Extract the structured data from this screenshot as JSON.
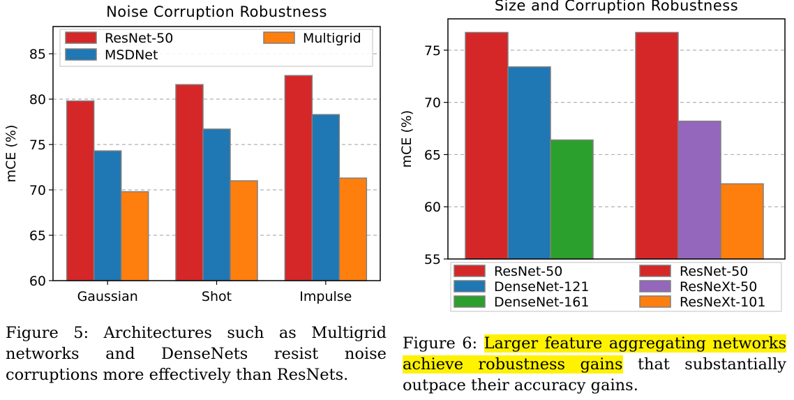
{
  "chart_data": [
    {
      "type": "bar",
      "title": "Noise Corruption Robustness",
      "ylabel": "mCE (%)",
      "xlabel": "",
      "categories": [
        "Gaussian",
        "Shot",
        "Impulse"
      ],
      "ylim": [
        60,
        88
      ],
      "yticks": [
        60,
        65,
        70,
        75,
        80,
        85
      ],
      "grid": "y dashed",
      "legend": "top",
      "series": [
        {
          "name": "ResNet-50",
          "color": "#d62728",
          "values": [
            79.8,
            81.6,
            82.6
          ]
        },
        {
          "name": "MSDNet",
          "color": "#1f77b4",
          "values": [
            74.3,
            76.7,
            78.3
          ]
        },
        {
          "name": "Multigrid",
          "color": "#ff7f0e",
          "values": [
            69.8,
            71.0,
            71.3
          ]
        }
      ]
    },
    {
      "type": "bar",
      "title": "Size and Corruption Robustness",
      "ylabel": "mCE (%)",
      "xlabel": "",
      "ylim": [
        55,
        78
      ],
      "yticks": [
        55,
        60,
        65,
        70,
        75
      ],
      "grid": "y dashed",
      "legend": "bottom",
      "groups": [
        {
          "bars": [
            {
              "name": "ResNet-50",
              "color": "#d62728",
              "value": 76.7
            },
            {
              "name": "DenseNet-121",
              "color": "#1f77b4",
              "value": 73.4
            },
            {
              "name": "DenseNet-161",
              "color": "#2ca02c",
              "value": 66.4
            }
          ]
        },
        {
          "bars": [
            {
              "name": "ResNet-50",
              "color": "#d62728",
              "value": 76.7
            },
            {
              "name": "ResNeXt-50",
              "color": "#9467bd",
              "value": 68.2
            },
            {
              "name": "ResNeXt-101",
              "color": "#ff7f0e",
              "value": 62.2
            }
          ]
        }
      ]
    }
  ],
  "captions": {
    "fig5": {
      "label": "Figure 5:",
      "text": "Architectures such as Multigrid networks and DenseNets resist noise corruptions more effectively than ResNets."
    },
    "fig6": {
      "label": "Figure 6:",
      "highlighted": "Larger feature aggregating networks achieve robustness gains",
      "rest": "that substantially outpace their accuracy gains."
    }
  }
}
